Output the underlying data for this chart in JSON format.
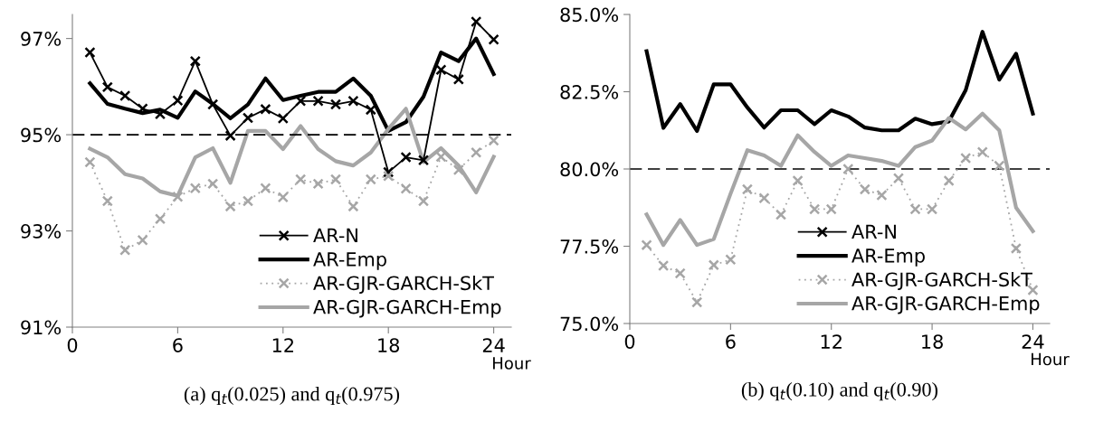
{
  "chart_data": [
    {
      "type": "line",
      "title": "(a) q$_{t}$(0.025) and q$_{t}$(0.975)",
      "xlabel": "Hour",
      "x": [
        1,
        2,
        3,
        4,
        5,
        6,
        7,
        8,
        9,
        10,
        11,
        12,
        13,
        14,
        15,
        16,
        17,
        18,
        19,
        20,
        21,
        22,
        23,
        24
      ],
      "xlim": [
        0,
        25
      ],
      "xticks": [
        0,
        6,
        12,
        18,
        24
      ],
      "ylim": [
        91,
        97.5
      ],
      "yticks": [
        {
          "value": 91,
          "label": "91%"
        },
        {
          "value": 93,
          "label": "93%"
        },
        {
          "value": 95,
          "label": "95%"
        },
        {
          "value": 97,
          "label": "97%"
        }
      ],
      "grid": false,
      "legend": "bottom right",
      "ref_lines": [
        {
          "axis": "y",
          "value": 95,
          "color": "#000000",
          "line_style": "dashed"
        }
      ],
      "series": [
        {
          "name": "AR-N",
          "color": "#000000",
          "marker": "cross",
          "line_style": "solid",
          "values": [
            96.71,
            95.99,
            95.81,
            95.54,
            95.43,
            95.71,
            96.53,
            95.63,
            94.98,
            95.35,
            95.53,
            95.34,
            95.7,
            95.7,
            95.63,
            95.7,
            95.52,
            94.22,
            94.53,
            94.47,
            96.35,
            96.15,
            97.35,
            96.98
          ]
        },
        {
          "name": "AR-Emp",
          "color": "#000000",
          "marker": "none",
          "line_style": "solid",
          "values": [
            96.07,
            95.64,
            95.54,
            95.45,
            95.52,
            95.35,
            95.9,
            95.64,
            95.34,
            95.63,
            96.17,
            95.72,
            95.81,
            95.89,
            95.89,
            96.17,
            95.81,
            95.08,
            95.26,
            95.79,
            96.71,
            96.53,
            97.0,
            96.26
          ]
        },
        {
          "name": "AR-GJR-GARCH-SkT",
          "color": "#a6a6a6",
          "marker": "cross",
          "line_style": "dotted",
          "values": [
            94.43,
            93.62,
            92.6,
            92.81,
            93.25,
            93.71,
            93.89,
            93.98,
            93.51,
            93.62,
            93.89,
            93.7,
            94.07,
            93.98,
            94.07,
            93.51,
            94.07,
            94.14,
            93.88,
            93.62,
            94.54,
            94.27,
            94.63,
            94.88
          ]
        },
        {
          "name": "AR-GJR-GARCH-Emp",
          "color": "#a6a6a6",
          "marker": "none",
          "line_style": "solid",
          "values": [
            94.71,
            94.53,
            94.18,
            94.09,
            93.82,
            93.73,
            94.53,
            94.72,
            94.0,
            95.08,
            95.08,
            94.7,
            95.18,
            94.7,
            94.45,
            94.36,
            94.63,
            95.12,
            95.54,
            94.43,
            94.72,
            94.36,
            93.8,
            94.54
          ]
        }
      ]
    },
    {
      "type": "line",
      "title": "(b) q$_{t}$(0.10) and q$_{t}$(0.90)",
      "xlabel": "Hour",
      "x": [
        1,
        2,
        3,
        4,
        5,
        6,
        7,
        8,
        9,
        10,
        11,
        12,
        13,
        14,
        15,
        16,
        17,
        18,
        19,
        20,
        21,
        22,
        23,
        24
      ],
      "xlim": [
        0,
        25
      ],
      "xticks": [
        0,
        6,
        12,
        18,
        24
      ],
      "ylim": [
        75,
        85
      ],
      "yticks": [
        {
          "value": 75,
          "label": "75.0%"
        },
        {
          "value": 77.5,
          "label": "77.5%"
        },
        {
          "value": 80,
          "label": "80.0%"
        },
        {
          "value": 82.5,
          "label": "82.5%"
        },
        {
          "value": 85,
          "label": "85.0%"
        }
      ],
      "grid": false,
      "legend": "bottom right",
      "ref_lines": [
        {
          "axis": "y",
          "value": 80,
          "color": "#000000",
          "line_style": "dashed"
        }
      ],
      "series": [
        {
          "name": "AR-N",
          "color": "#000000",
          "marker": "cross",
          "line_style": "solid",
          "values": [
            null,
            null,
            null,
            null,
            null,
            null,
            null,
            null,
            null,
            null,
            null,
            null,
            null,
            null,
            null,
            null,
            null,
            null,
            null,
            null,
            null,
            null,
            null,
            null
          ]
        },
        {
          "name": "AR-Emp",
          "color": "#000000",
          "marker": "none",
          "line_style": "solid",
          "values": [
            83.81,
            81.33,
            82.1,
            81.23,
            82.74,
            82.74,
            81.99,
            81.34,
            81.9,
            81.9,
            81.45,
            81.9,
            81.7,
            81.34,
            81.25,
            81.25,
            81.63,
            81.45,
            81.54,
            82.55,
            84.44,
            82.89,
            83.73,
            81.79
          ]
        },
        {
          "name": "AR-GJR-GARCH-SkT",
          "color": "#a6a6a6",
          "marker": "cross",
          "line_style": "dotted",
          "values": [
            77.54,
            76.87,
            76.62,
            75.69,
            76.89,
            77.07,
            79.34,
            79.06,
            78.52,
            79.62,
            78.7,
            78.7,
            80.0,
            79.34,
            79.15,
            79.7,
            78.7,
            78.7,
            79.62,
            80.35,
            80.55,
            80.1,
            77.43,
            76.08
          ]
        },
        {
          "name": "AR-GJR-GARCH-Emp",
          "color": "#a6a6a6",
          "marker": "none",
          "line_style": "solid",
          "values": [
            78.53,
            77.54,
            78.35,
            77.54,
            77.73,
            79.2,
            80.61,
            80.44,
            80.1,
            81.09,
            80.55,
            80.1,
            80.44,
            80.35,
            80.26,
            80.1,
            80.71,
            80.92,
            81.65,
            81.28,
            81.79,
            81.25,
            78.75,
            77.99
          ]
        }
      ]
    }
  ]
}
